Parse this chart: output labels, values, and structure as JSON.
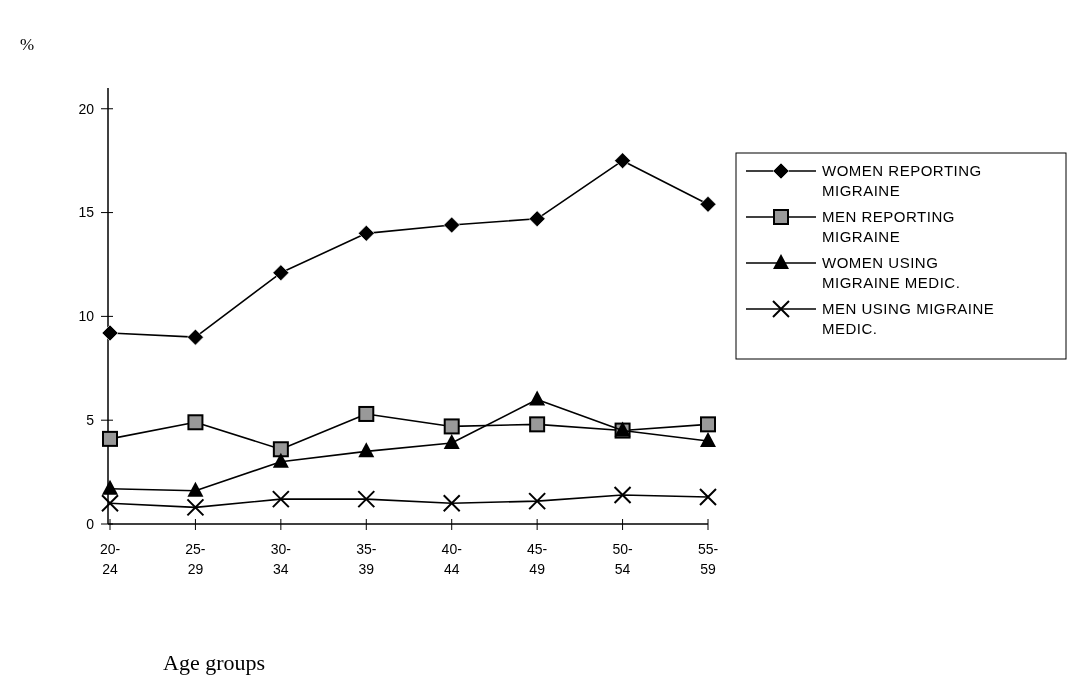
{
  "chart_data": {
    "type": "line",
    "ylabel": "%",
    "xlabel": "Age groups",
    "categories": [
      "20-24",
      "25-29",
      "30-34",
      "35-39",
      "40-44",
      "45-49",
      "50-54",
      "55-59"
    ],
    "ylim": [
      0,
      21
    ],
    "yticks": [
      0,
      5,
      10,
      15,
      20
    ],
    "grid": false,
    "legend": "right",
    "line_style": "solid",
    "series": [
      {
        "name": "WOMEN REPORTING MIGRAINE",
        "color": "#000000",
        "marker": "diamond",
        "values": [
          9.2,
          9.0,
          12.1,
          14.0,
          14.4,
          14.7,
          17.5,
          15.4
        ]
      },
      {
        "name": "MEN REPORTING MIGRAINE",
        "color": "#000000",
        "marker": "square",
        "values": [
          4.1,
          4.9,
          3.6,
          5.3,
          4.7,
          4.8,
          4.5,
          4.8
        ]
      },
      {
        "name": "WOMEN USING MIGRAINE MEDIC.",
        "color": "#000000",
        "marker": "triangle",
        "values": [
          1.7,
          1.6,
          3.0,
          3.5,
          3.9,
          6.0,
          4.5,
          4.0
        ]
      },
      {
        "name": "MEN USING MIGRAINE MEDIC.",
        "color": "#000000",
        "marker": "cross",
        "values": [
          1.0,
          0.8,
          1.2,
          1.2,
          1.0,
          1.1,
          1.4,
          1.3
        ]
      }
    ]
  }
}
